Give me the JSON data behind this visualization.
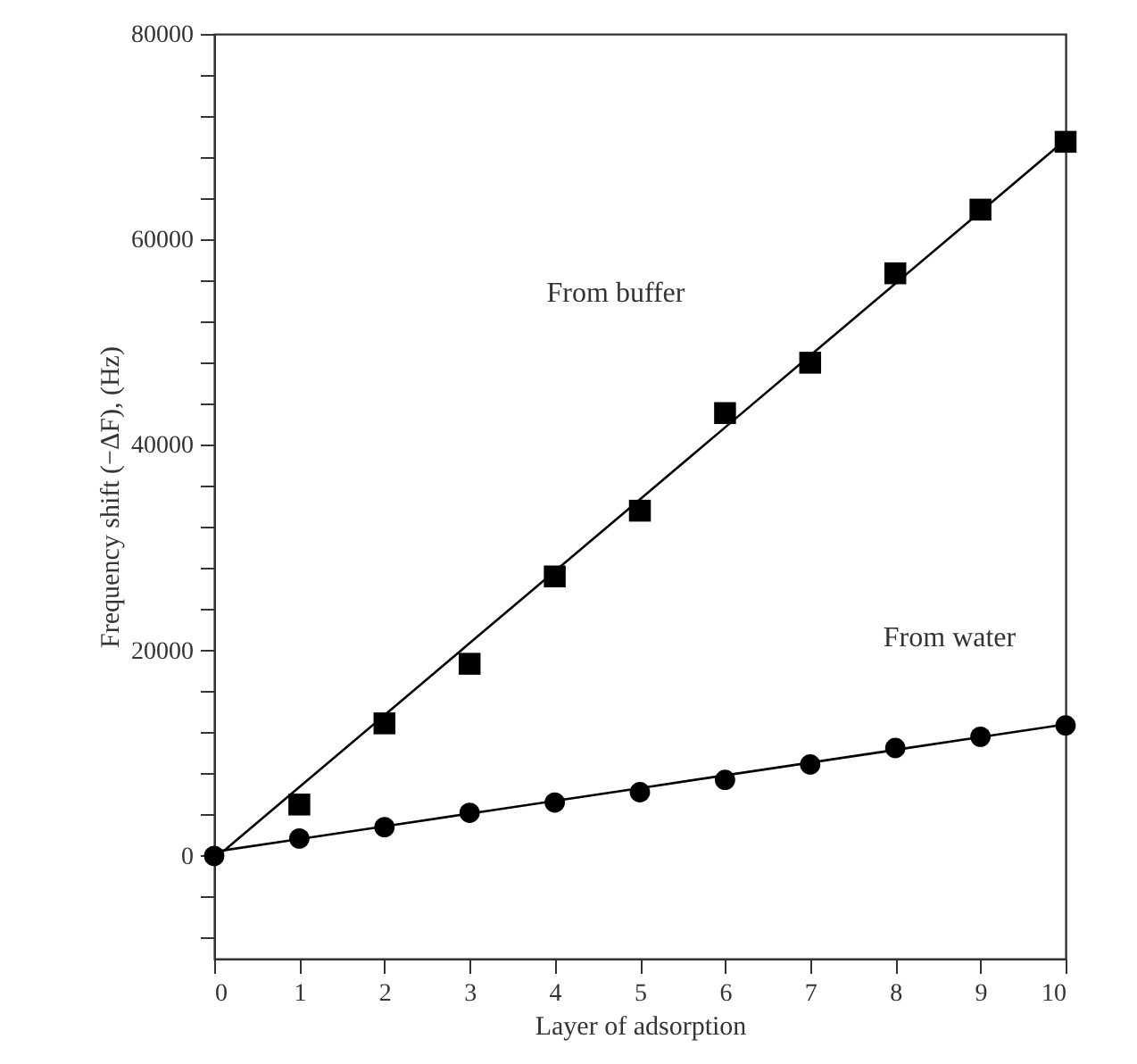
{
  "chart_data": {
    "type": "scatter",
    "xlabel": "Layer of adsorption",
    "ylabel": "Frequency shift (−ΔF), (Hz)",
    "x": [
      0,
      1,
      2,
      3,
      4,
      5,
      6,
      7,
      8,
      9,
      10
    ],
    "series": [
      {
        "color": "#000000",
        "marker": "square",
        "values": [
          null,
          5000,
          12900,
          18700,
          27200,
          33600,
          43100,
          48000,
          56700,
          62900,
          69500
        ]
      },
      {
        "color": "#000000",
        "marker": "circle",
        "values": [
          0,
          1700,
          2800,
          4200,
          5200,
          6200,
          7400,
          8900,
          10500,
          11600,
          12700
        ]
      },
      {
        "type": "line",
        "color": "#000000",
        "line_style": "solid",
        "values": [
          -300,
          6700,
          13700,
          20700,
          27700,
          34700,
          41700,
          48700,
          55700,
          62700,
          69700
        ]
      },
      {
        "type": "line",
        "color": "#000000",
        "line_style": "solid",
        "values": [
          400,
          1640,
          2880,
          4120,
          5360,
          6600,
          7840,
          9080,
          10320,
          11560,
          12800
        ]
      }
    ],
    "annotations": [
      "From buffer",
      "From water"
    ],
    "xlim": [
      0,
      10
    ],
    "xticks": [
      0,
      1,
      2,
      3,
      4,
      5,
      6,
      7,
      8,
      9,
      10
    ],
    "ylim": [
      -10000,
      80000
    ],
    "yticks": [
      {
        "value": -8000,
        "label": null
      },
      {
        "value": -4000,
        "label": null
      },
      0,
      {
        "value": 4000,
        "label": null
      },
      {
        "value": 8000,
        "label": null
      },
      {
        "value": 12000,
        "label": null
      },
      {
        "value": 16000,
        "label": null
      },
      20000,
      {
        "value": 24000,
        "label": null
      },
      {
        "value": 28000,
        "label": null
      },
      {
        "value": 32000,
        "label": null
      },
      {
        "value": 36000,
        "label": null
      },
      40000,
      {
        "value": 44000,
        "label": null
      },
      {
        "value": 48000,
        "label": null
      },
      {
        "value": 52000,
        "label": null
      },
      {
        "value": 56000,
        "label": null
      },
      60000,
      {
        "value": 64000,
        "label": null
      },
      {
        "value": 68000,
        "label": null
      },
      {
        "value": 72000,
        "label": null
      },
      {
        "value": 76000,
        "label": null
      },
      80000
    ],
    "grid": false
  }
}
